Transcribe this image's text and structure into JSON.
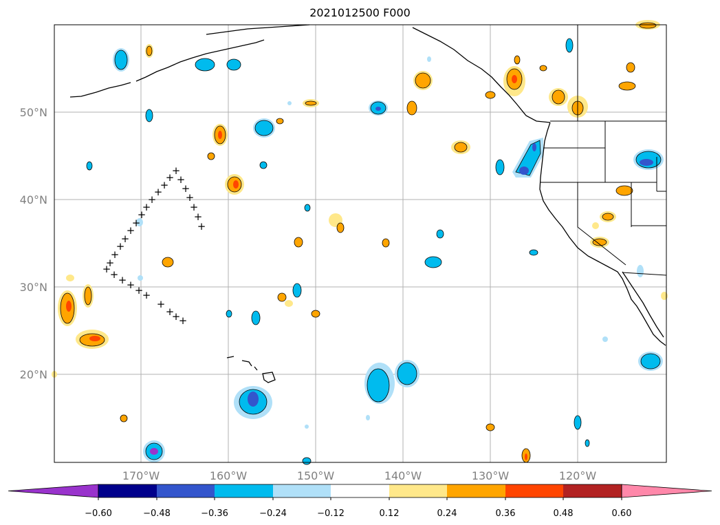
{
  "map": {
    "title": "2021012500 F000",
    "lat_labels": [
      "50°N",
      "40°N",
      "30°N",
      "20°N"
    ],
    "lon_labels": [
      "170°W",
      "160°W",
      "150°W",
      "140°W",
      "130°W",
      "120°W"
    ],
    "marker_symbol": "+"
  },
  "colorbar": {
    "tick_labels": [
      "−0.60",
      "−0.48",
      "−0.36",
      "−0.24",
      "−0.12",
      "0.12",
      "0.24",
      "0.36",
      "0.48",
      "0.60"
    ],
    "colors": [
      "#9933cc",
      "#00008b",
      "#3355cc",
      "#00bbee",
      "#b0e0f8",
      "#ffffff",
      "#ffe88a",
      "#ffa500",
      "#ff4500",
      "#b22222",
      "#ff88aa"
    ]
  }
}
